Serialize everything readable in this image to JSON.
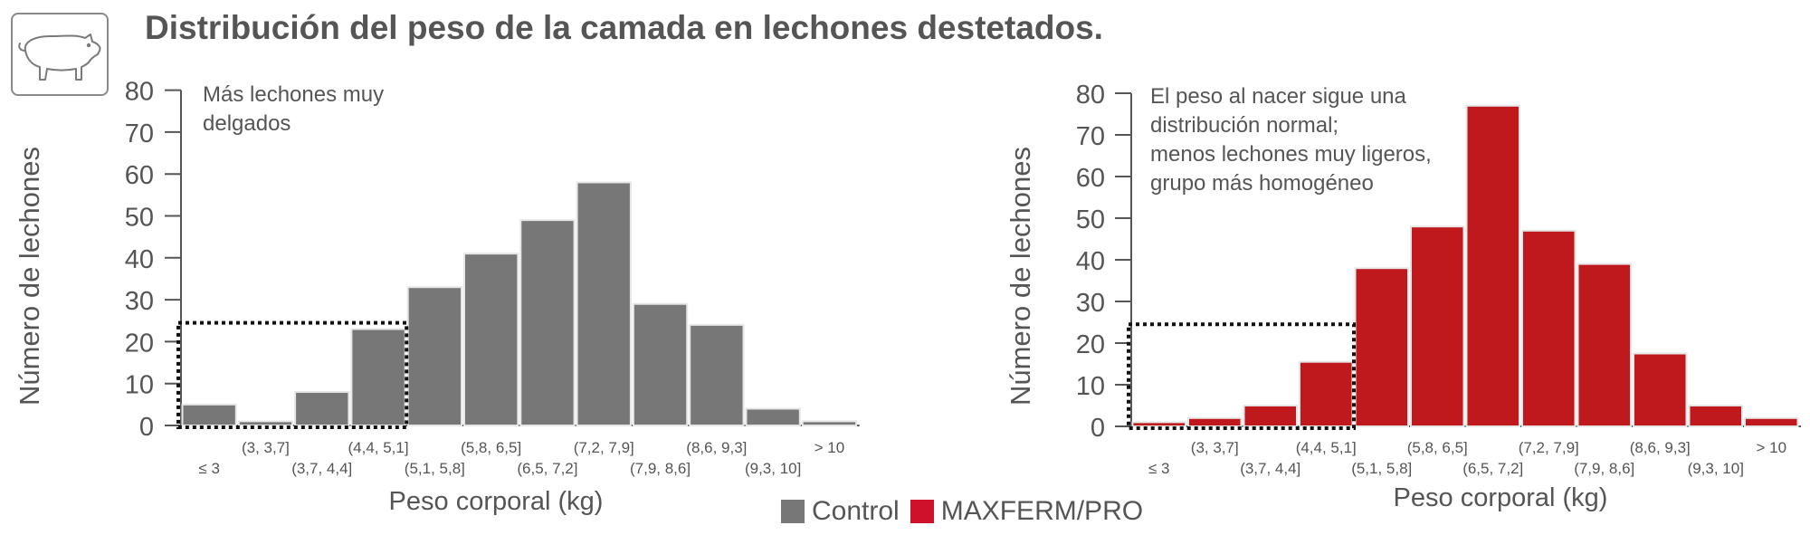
{
  "title": "Distribución del peso de la camada en lechones destetados.",
  "logo": {
    "icon": "pig-icon"
  },
  "colors": {
    "control": "#777777",
    "maxferm": "#c0191d",
    "axis": "#555555",
    "text": "#555555"
  },
  "legend": [
    {
      "label": "Control",
      "color": "#777777"
    },
    {
      "label": "MAXFERM/PRO",
      "color": "#d0112b"
    }
  ],
  "chart_data": [
    {
      "type": "bar",
      "categories": [
        "≤ 3",
        "(3, 3,7]",
        "(3,7, 4,4]",
        "(4,4, 5,1]",
        "(5,1, 5,8]",
        "(5,8, 6,5]",
        "(6,5, 7,2]",
        "(7,2, 7,9]",
        "(7,9, 8,6]",
        "(8,6, 9,3]",
        "(9,3, 10]",
        "> 10"
      ],
      "series": [
        {
          "name": "Control",
          "values": [
            5,
            1,
            8,
            23,
            33,
            41,
            49,
            58,
            29,
            24,
            4,
            1
          ]
        }
      ],
      "xlabel": "Peso corporal (kg)",
      "ylabel": "Número de lechones",
      "ylim": [
        0,
        80
      ],
      "yticks": [
        0,
        10,
        20,
        30,
        40,
        50,
        60,
        70,
        80
      ],
      "annotation": [
        "Más lechones muy",
        "delgados"
      ],
      "highlight": {
        "from_category": "≤ 3",
        "to_category": "(4,4, 5,1]",
        "y_max": 24.5,
        "style": "dotted"
      }
    },
    {
      "type": "bar",
      "categories": [
        "≤ 3",
        "(3, 3,7]",
        "(3,7, 4,4]",
        "(4,4, 5,1]",
        "(5,1, 5,8]",
        "(5,8, 6,5]",
        "(6,5, 7,2]",
        "(7,2, 7,9]",
        "(7,9, 8,6]",
        "(8,6, 9,3]",
        "(9,3, 10]",
        "> 10"
      ],
      "series": [
        {
          "name": "MAXFERM/PRO",
          "values": [
            1,
            2,
            5,
            15.5,
            38,
            48,
            77,
            47,
            39,
            17.5,
            5,
            2
          ]
        }
      ],
      "xlabel": "Peso corporal (kg)",
      "ylabel": "Número de lechones",
      "ylim": [
        0,
        80
      ],
      "yticks": [
        0,
        10,
        20,
        30,
        40,
        50,
        60,
        70,
        80
      ],
      "annotation": [
        "El peso al nacer sigue una",
        "distribución normal;",
        "menos lechones muy ligeros,",
        "grupo más homogéneo"
      ],
      "highlight": {
        "from_category": "≤ 3",
        "to_category": "(4,4, 5,1]",
        "y_max": 24.5,
        "style": "dotted"
      }
    }
  ]
}
